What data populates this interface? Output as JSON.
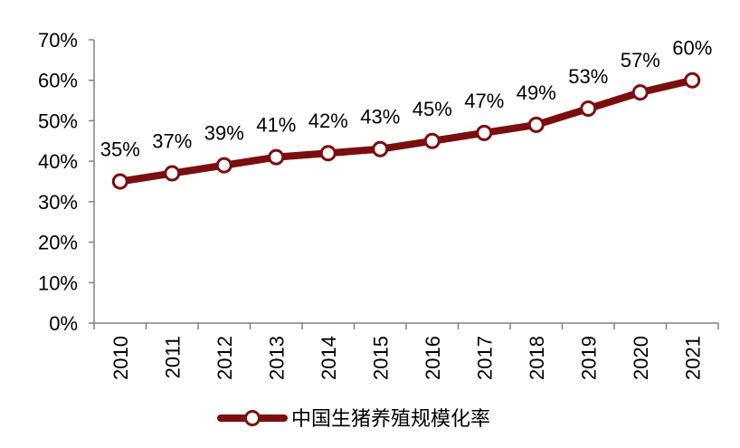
{
  "chart_data": {
    "type": "line",
    "title": "",
    "xlabel": "",
    "ylabel": "",
    "categories": [
      "2010",
      "2011",
      "2012",
      "2013",
      "2014",
      "2015",
      "2016",
      "2017",
      "2018",
      "2019",
      "2020",
      "2021"
    ],
    "ylim": [
      0,
      70
    ],
    "yticks": [
      0,
      10,
      20,
      30,
      40,
      50,
      60,
      70
    ],
    "ytick_labels": [
      "0%",
      "10%",
      "20%",
      "30%",
      "40%",
      "50%",
      "60%",
      "70%"
    ],
    "grid": false,
    "legend": "bottom-center",
    "series": [
      {
        "name": "中国生猪养殖规模化率",
        "values": [
          35,
          37,
          39,
          41,
          42,
          43,
          45,
          47,
          49,
          53,
          57,
          60
        ],
        "data_labels": [
          "35%",
          "37%",
          "39%",
          "41%",
          "42%",
          "43%",
          "45%",
          "47%",
          "49%",
          "53%",
          "57%",
          "60%"
        ],
        "color": "#7b0e0e",
        "marker": "circle-open"
      }
    ]
  }
}
